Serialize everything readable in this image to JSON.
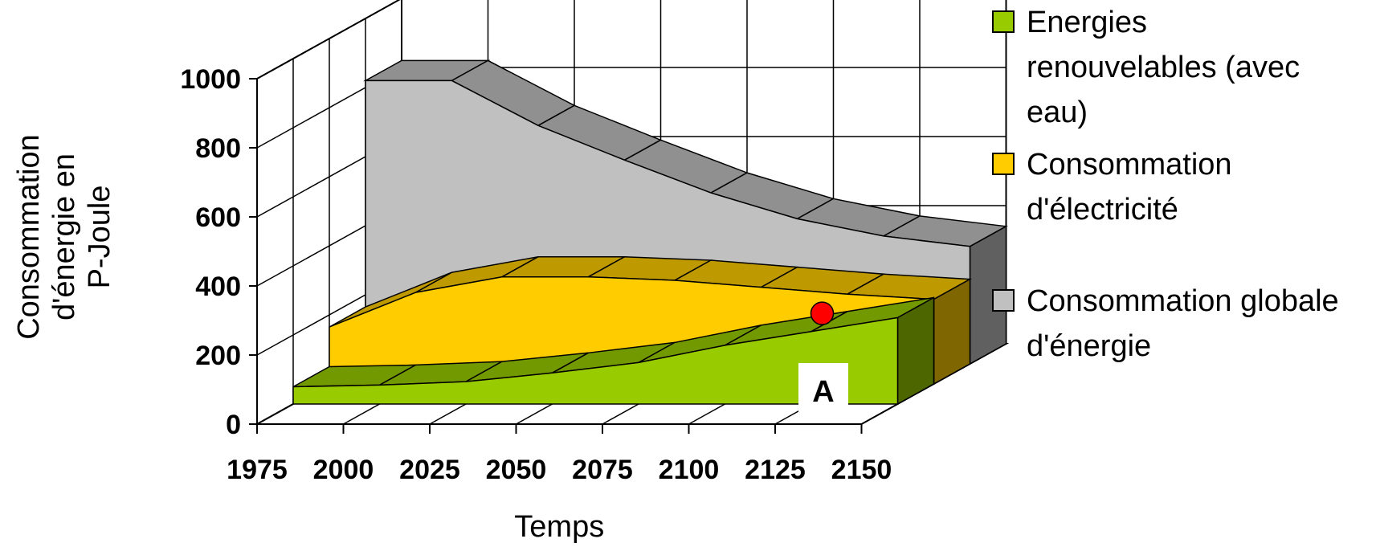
{
  "chart_data": {
    "type": "area",
    "three_d": true,
    "xlabel": "Temps",
    "ylabel_lines": [
      "Consommation",
      "d'énergie en",
      "P-Joule"
    ],
    "x": [
      1975,
      2000,
      2025,
      2050,
      2075,
      2100,
      2125,
      2150
    ],
    "x_ticks": [
      "1975",
      "2000",
      "2025",
      "2050",
      "2075",
      "2100",
      "2125",
      "2150"
    ],
    "y_ticks": [
      "0",
      "200",
      "400",
      "600",
      "800",
      "1000"
    ],
    "ylim": [
      0,
      1000
    ],
    "grid": true,
    "legend_position": "right",
    "series": [
      {
        "name": "Consommation globale d'énergie",
        "legend_lines": [
          "Consommation globale",
          "d'énergie"
        ],
        "color": "#c0c0c0",
        "values": [
          820,
          820,
          690,
          590,
          495,
          420,
          370,
          340
        ]
      },
      {
        "name": "Consommation d'électricité",
        "legend_lines": [
          "Consommation",
          "d'électricité"
        ],
        "color": "#ffcc00",
        "values": [
          165,
          265,
          310,
          310,
          300,
          280,
          260,
          245
        ]
      },
      {
        "name": "Energies renouvelables (avec eau)",
        "legend_lines": [
          "Energies",
          "renouvelables (avec",
          "eau)"
        ],
        "color": "#99cc00",
        "values": [
          50,
          55,
          65,
          90,
          120,
          170,
          210,
          250
        ]
      }
    ],
    "annotations": [
      {
        "text": "A"
      },
      {
        "type": "marker",
        "x": 2125,
        "y": 245,
        "color": "#ff0000"
      }
    ]
  }
}
